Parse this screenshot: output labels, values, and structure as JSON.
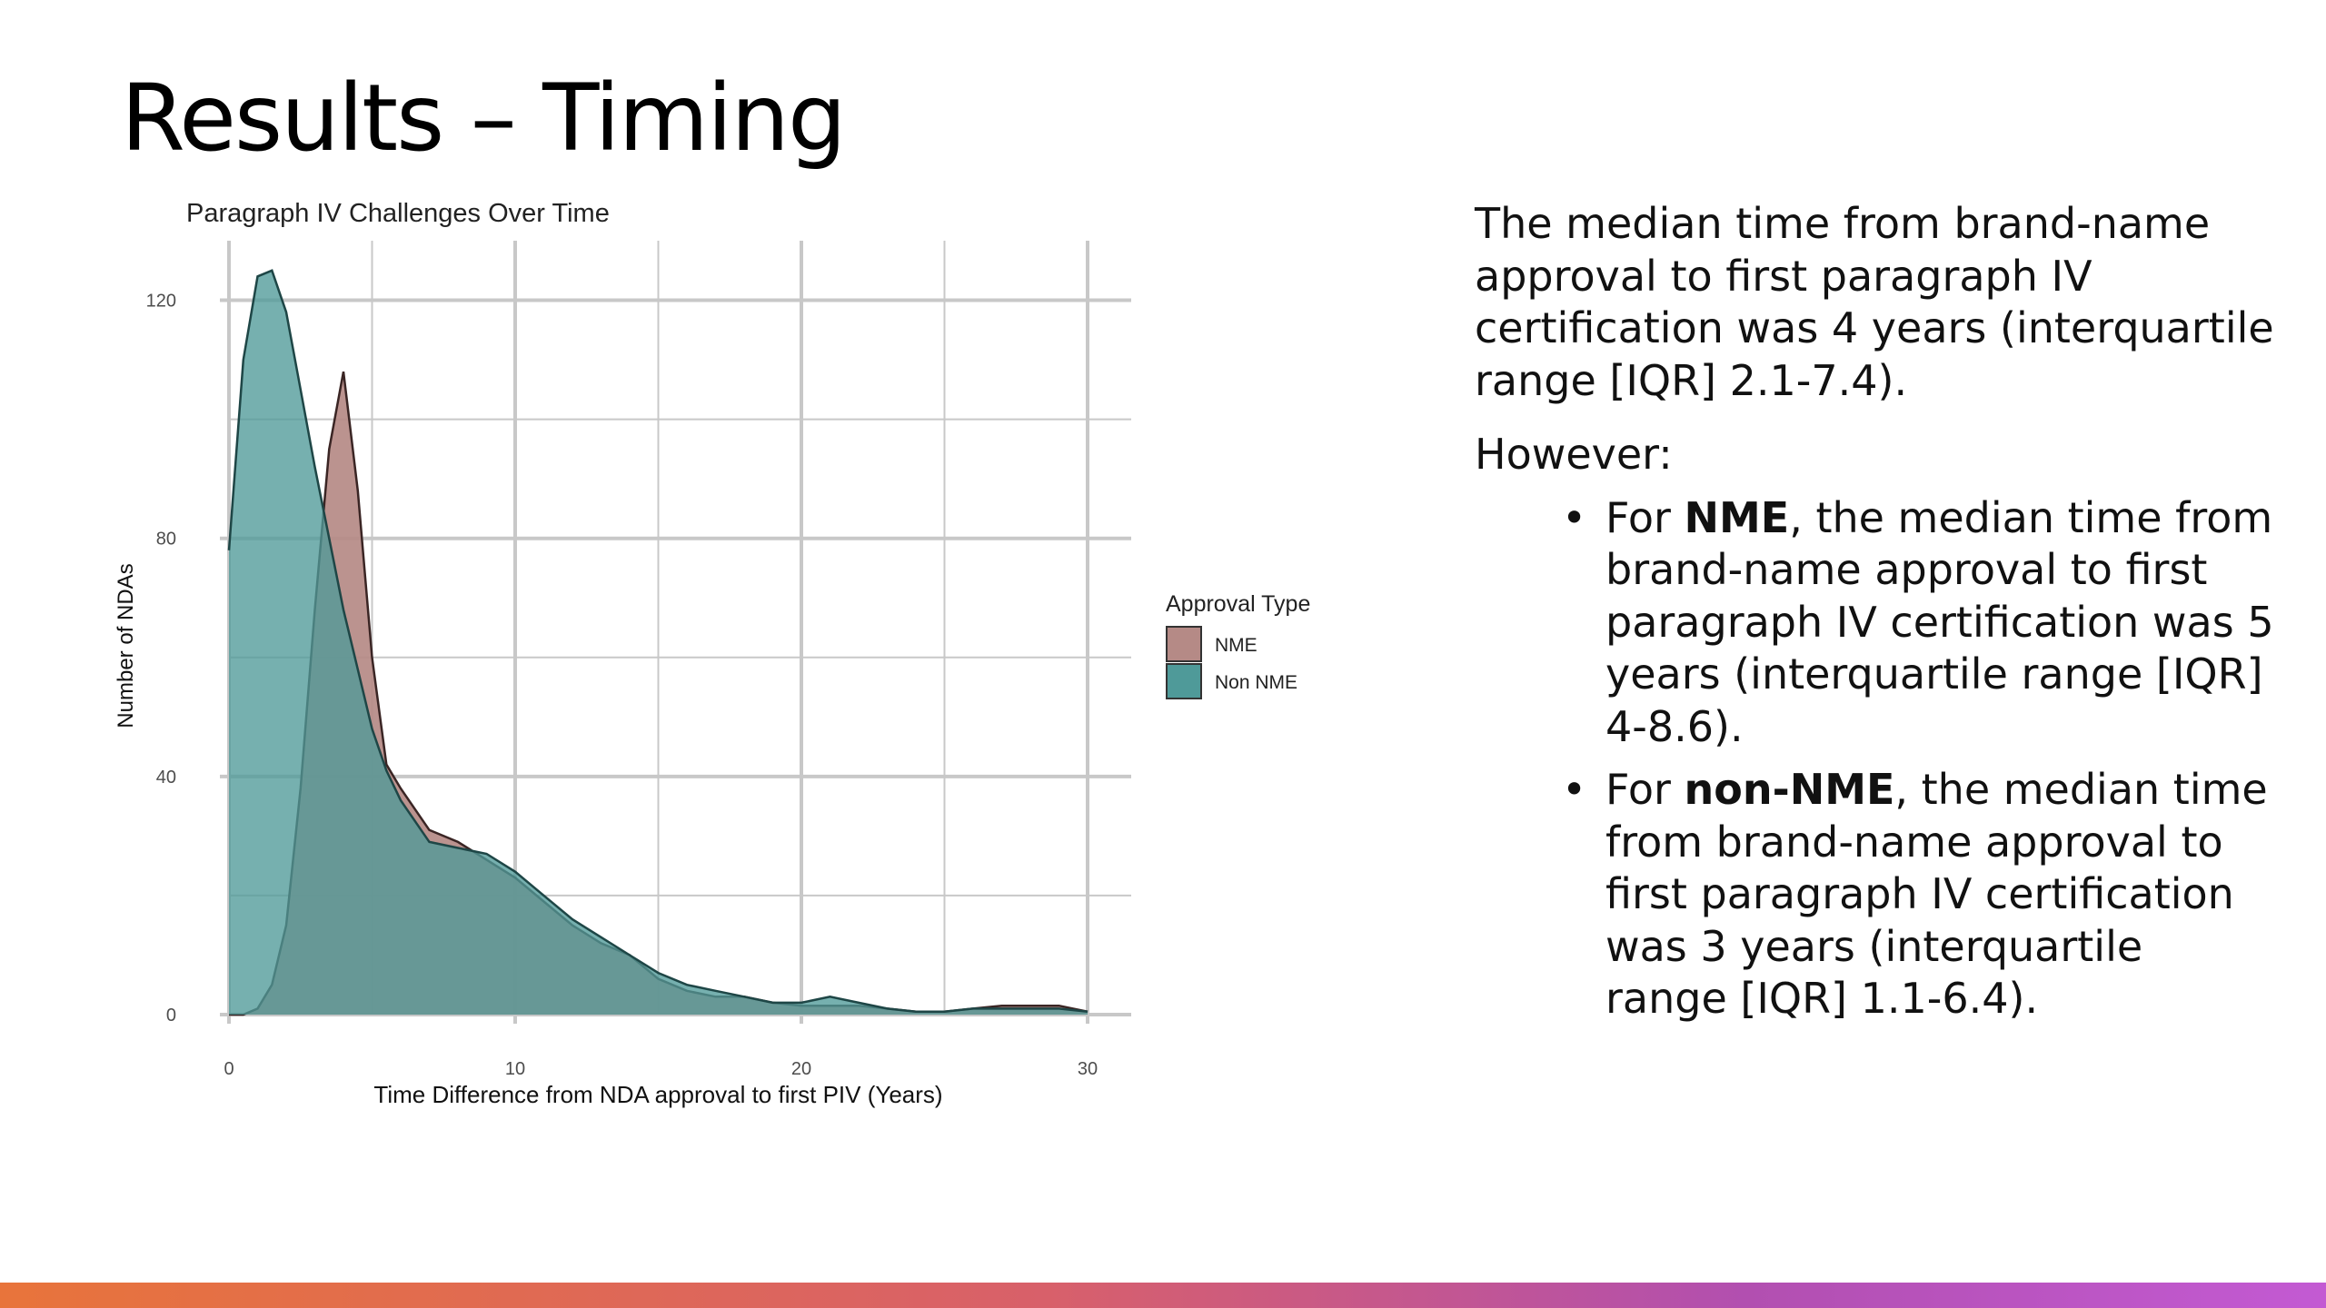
{
  "slide": {
    "title": "Results – Timing"
  },
  "chart_data": {
    "type": "area",
    "title": "Paragraph IV Challenges Over Time",
    "xlabel": "Time Difference from NDA approval to first PIV (Years)",
    "ylabel": "Number of NDAs",
    "xlim": [
      0,
      30
    ],
    "ylim": [
      0,
      130
    ],
    "xticks": [
      0,
      10,
      20,
      30
    ],
    "yticks": [
      0,
      40,
      80,
      120
    ],
    "grid": true,
    "legend": {
      "title": "Approval Type",
      "placement": "right"
    },
    "series": [
      {
        "name": "NME",
        "color": "#b58a86",
        "x": [
          0,
          0.5,
          1,
          1.5,
          2,
          2.5,
          3,
          3.5,
          4,
          4.5,
          5,
          5.5,
          6,
          7,
          8,
          9,
          10,
          11,
          12,
          13,
          14,
          15,
          16,
          17,
          18,
          19,
          20,
          21,
          22,
          23,
          24,
          25,
          26,
          27,
          28,
          29,
          30
        ],
        "y": [
          0,
          0,
          1,
          5,
          15,
          38,
          68,
          95,
          108,
          88,
          60,
          42,
          38,
          31,
          29,
          26,
          23,
          19,
          15,
          12,
          10,
          6,
          4,
          3,
          3,
          2,
          1.5,
          1.5,
          1.5,
          1,
          0.5,
          0.5,
          1,
          1.5,
          1.5,
          1.5,
          0.5
        ]
      },
      {
        "name": "Non NME",
        "color": "#4f9a99",
        "x": [
          0,
          0.5,
          1,
          1.5,
          2,
          2.5,
          3,
          3.5,
          4,
          4.5,
          5,
          5.5,
          6,
          7,
          8,
          9,
          10,
          11,
          12,
          13,
          14,
          15,
          16,
          17,
          18,
          19,
          20,
          21,
          22,
          23,
          24,
          25,
          26,
          27,
          28,
          29,
          30
        ],
        "y": [
          78,
          110,
          124,
          125,
          118,
          105,
          92,
          80,
          68,
          58,
          48,
          41,
          36,
          29,
          28,
          27,
          24,
          20,
          16,
          13,
          10,
          7,
          5,
          4,
          3,
          2,
          2,
          3,
          2,
          1,
          0.5,
          0.5,
          1,
          1,
          1,
          1,
          0.5
        ]
      }
    ]
  },
  "text": {
    "intro": "The median time from brand-name approval to first paragraph IV certification was 4 years (interquartile range [IQR] 2.1-7.4).",
    "however": "However:",
    "bullets": [
      {
        "pre": "For ",
        "bold": "NME",
        "post": ", the median time from brand-name approval to first paragraph IV certification was 5 years (interquartile range [IQR] 4-8.6)."
      },
      {
        "pre": "For ",
        "bold": "non-NME",
        "post": ", the median time from brand-name approval to first paragraph IV certification was 3 years (interquartile range [IQR] 1.1-6.4)."
      }
    ],
    "bullet_glyph": "•"
  },
  "colors": {
    "grid": "#c8c8c8",
    "accent_gradient": [
      "#e8743b",
      "#b24fb0"
    ]
  }
}
